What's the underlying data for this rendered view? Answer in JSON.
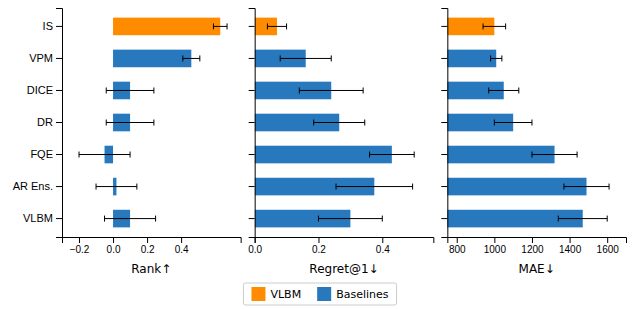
{
  "chart_data": [
    {
      "type": "bar",
      "orientation": "horizontal",
      "xlabel": "Rank↑",
      "categories": [
        "IS",
        "VPM",
        "DICE",
        "DR",
        "FQE",
        "AR Ens.",
        "VLBM"
      ],
      "series": [
        {
          "name": "VLBM",
          "color": "#FF8C00",
          "values": [
            0.63,
            null,
            null,
            null,
            null,
            null,
            null
          ],
          "errors": [
            0.04,
            null,
            null,
            null,
            null,
            null,
            null
          ]
        },
        {
          "name": "Baselines",
          "color": "#2878BD",
          "values": [
            null,
            0.46,
            0.1,
            0.1,
            -0.05,
            0.02,
            0.1
          ],
          "errors": [
            null,
            0.05,
            0.14,
            0.14,
            0.15,
            0.12,
            0.15
          ]
        }
      ],
      "xlim": [
        -0.3,
        0.75
      ],
      "xticks": [
        {
          "value": -0.2,
          "label": "−0.2"
        },
        {
          "value": 0.0,
          "label": "0.0"
        },
        0.2,
        0.4
      ],
      "grid": false,
      "legend": "bottom"
    },
    {
      "type": "bar",
      "orientation": "horizontal",
      "xlabel": "Regret@1↓",
      "categories": [
        "IS",
        "VPM",
        "DICE",
        "DR",
        "FQE",
        "AR Ens.",
        "VLBM"
      ],
      "series": [
        {
          "name": "VLBM",
          "color": "#FF8C00",
          "values": [
            0.07,
            null,
            null,
            null,
            null,
            null,
            null
          ],
          "errors": [
            0.03,
            null,
            null,
            null,
            null,
            null,
            null
          ]
        },
        {
          "name": "Baselines",
          "color": "#2878BD",
          "values": [
            null,
            0.16,
            0.24,
            0.265,
            0.43,
            0.375,
            0.3
          ],
          "errors": [
            null,
            0.08,
            0.1,
            0.08,
            0.07,
            0.12,
            0.1
          ]
        }
      ],
      "xlim": [
        0.0,
        0.56
      ],
      "xticks": [
        {
          "value": 0.0,
          "label": "0.0"
        },
        0.2,
        0.4
      ],
      "grid": false,
      "tick_labels": "x"
    },
    {
      "type": "bar",
      "orientation": "horizontal",
      "xlabel": "MAE↓",
      "categories": [
        "IS",
        "VPM",
        "DICE",
        "DR",
        "FQE",
        "AR Ens.",
        "VLBM"
      ],
      "series": [
        {
          "name": "VLBM",
          "color": "#FF8C00",
          "values": [
            1000,
            null,
            null,
            null,
            null,
            null,
            null
          ],
          "errors": [
            60,
            null,
            null,
            null,
            null,
            null,
            null
          ]
        },
        {
          "name": "Baselines",
          "color": "#2878BD",
          "values": [
            null,
            1010,
            1050,
            1100,
            1320,
            1490,
            1470
          ],
          "errors": [
            null,
            30,
            80,
            100,
            120,
            120,
            130
          ]
        }
      ],
      "xlim": [
        750,
        1700
      ],
      "xticks": [
        800,
        1000,
        1200,
        1400,
        1600
      ],
      "grid": false,
      "tick_labels": "x"
    }
  ]
}
